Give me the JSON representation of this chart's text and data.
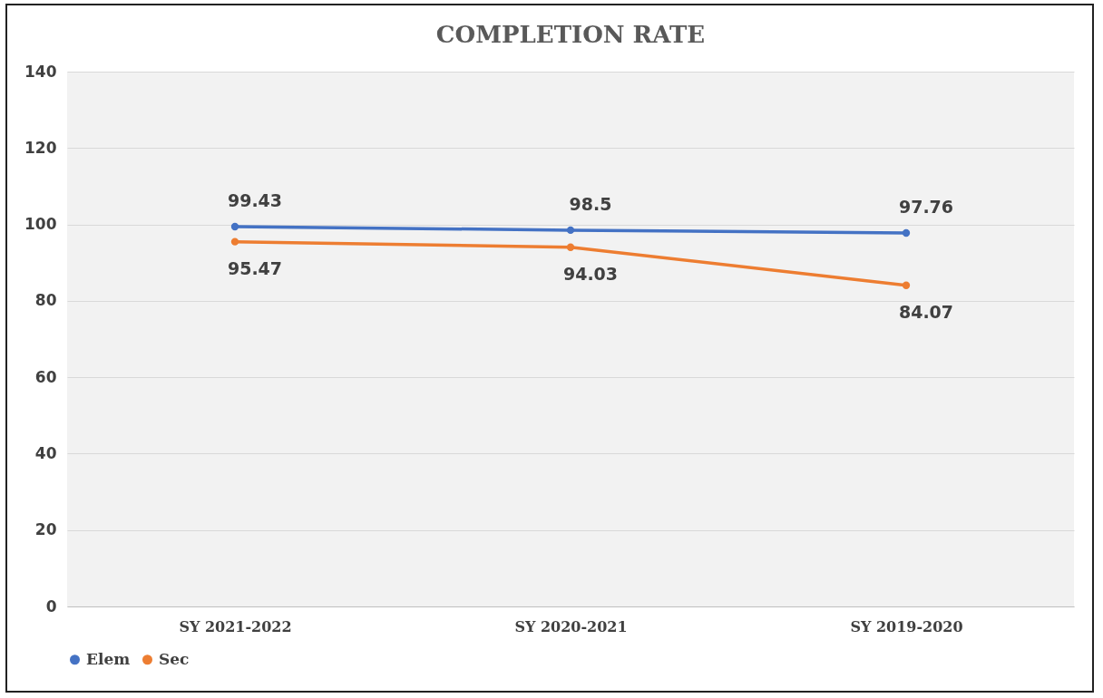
{
  "chart_data": {
    "type": "line",
    "title": "COMPLETION RATE",
    "categories": [
      "SY 2021-2022",
      "SY 2020-2021",
      "SY 2019-2020"
    ],
    "series": [
      {
        "name": "Elem",
        "color": "#4472c4",
        "values": [
          99.43,
          98.5,
          97.76
        ]
      },
      {
        "name": "Sec",
        "color": "#ed7d31",
        "values": [
          95.47,
          94.03,
          84.07
        ]
      }
    ],
    "ylim": [
      0,
      140
    ],
    "yticks": [
      0,
      20,
      40,
      60,
      80,
      100,
      120,
      140
    ],
    "grid": "y",
    "legend": "bottom",
    "marker": "circle",
    "line_style": "solid",
    "data_labels": true
  }
}
